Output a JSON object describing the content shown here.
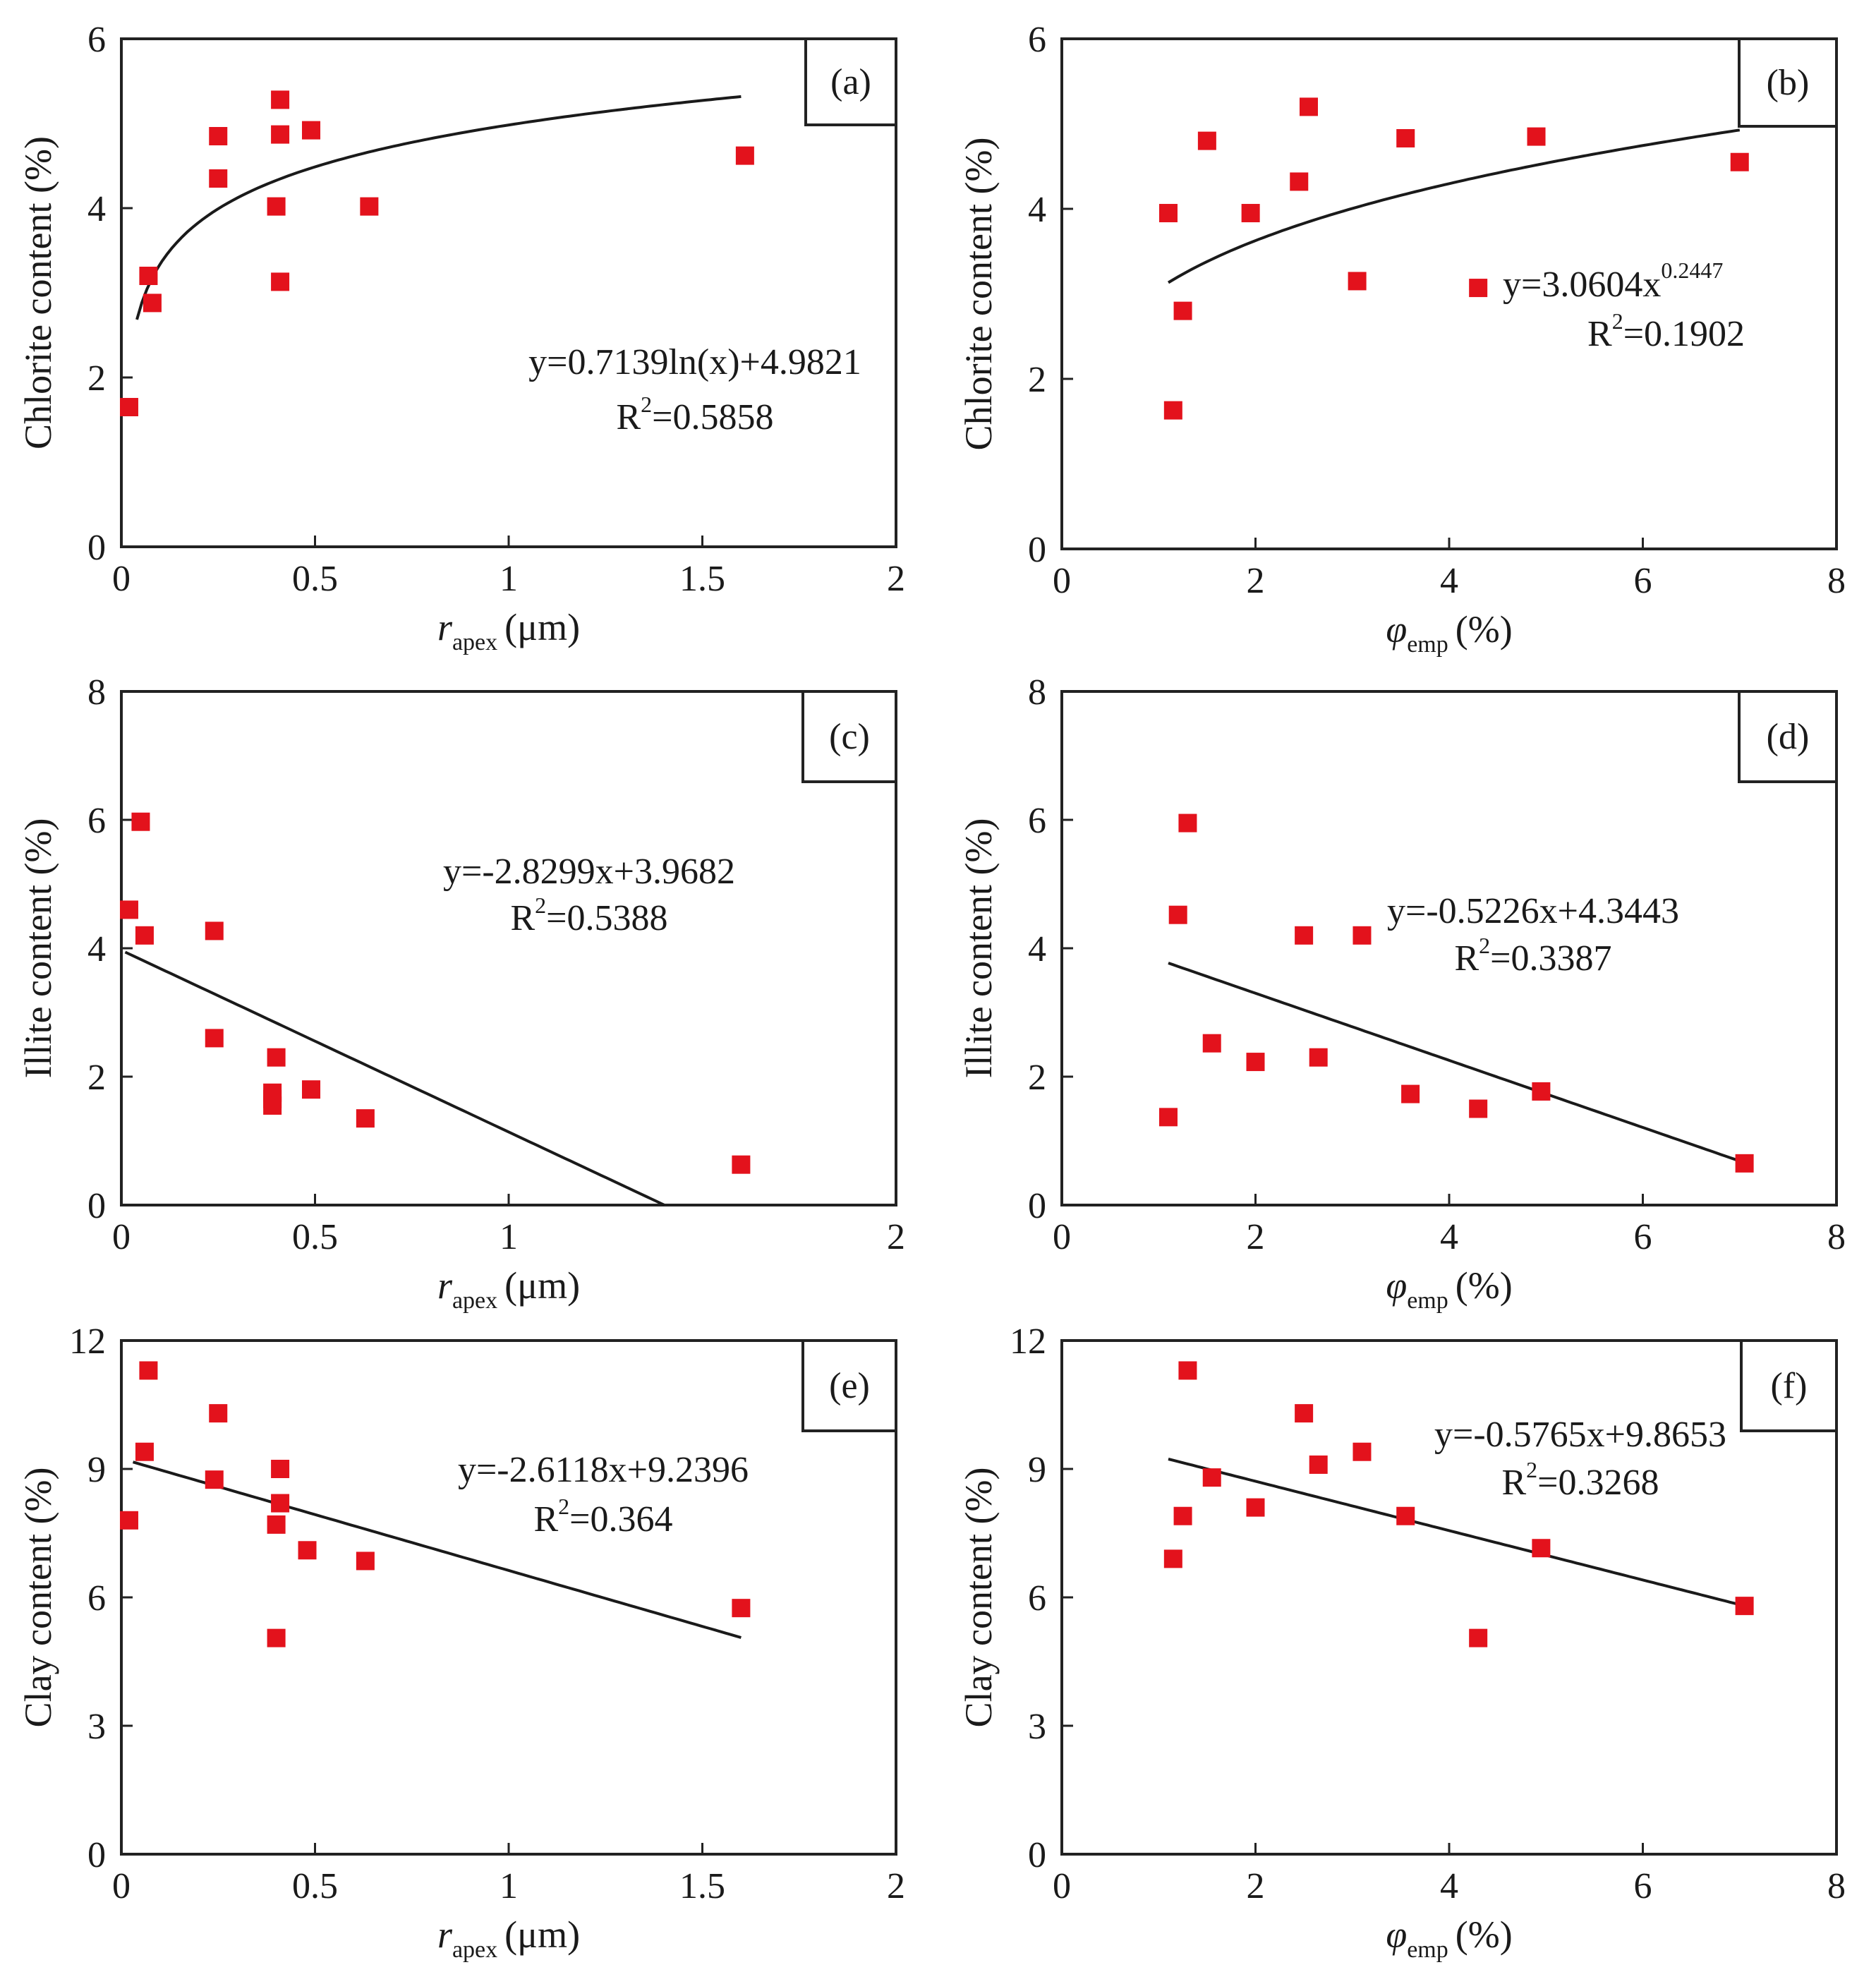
{
  "chart_data": [
    {
      "panel": "a",
      "type": "scatter",
      "panel_label": "(a)",
      "xlim": [
        0,
        2
      ],
      "ylim": [
        0,
        6
      ],
      "xticks": [
        "0",
        "0.5",
        "1",
        "1.5",
        "2"
      ],
      "yticks": [
        "0",
        "2",
        "4",
        "6"
      ],
      "xlabel": {
        "main": "r",
        "sub": "apex",
        "unit": "(μm)"
      },
      "ylabel": "Chlorite content (%)",
      "points": {
        "x": [
          0.02,
          0.07,
          0.08,
          0.25,
          0.25,
          0.4,
          0.41,
          0.41,
          0.41,
          0.49,
          0.64,
          1.61
        ],
        "y": [
          1.65,
          3.2,
          2.88,
          4.85,
          4.35,
          4.02,
          3.13,
          5.28,
          4.87,
          4.92,
          4.02,
          4.62
        ]
      },
      "trend": {
        "kind": "log",
        "a": 0.7139,
        "b": 4.9821,
        "xrange": [
          0.04,
          1.6
        ]
      },
      "equation": "y=0.7139ln(x)+4.9821",
      "r2_label": "R",
      "r2_sup": "2",
      "r2_value": "=0.5858"
    },
    {
      "panel": "b",
      "type": "scatter",
      "panel_label": "(b)",
      "xlim": [
        0,
        8
      ],
      "ylim": [
        0,
        6
      ],
      "xticks": [
        "0",
        "2",
        "4",
        "6",
        "8"
      ],
      "yticks": [
        "0",
        "2",
        "4",
        "6"
      ],
      "xlabel": {
        "main": "φ",
        "sub": "emp",
        "unit": "(%)"
      },
      "ylabel": "Chlorite content (%)",
      "points": {
        "x": [
          1.1,
          1.15,
          1.25,
          1.5,
          1.95,
          2.45,
          2.55,
          3.05,
          3.55,
          4.3,
          4.9,
          7.0
        ],
        "y": [
          3.95,
          1.63,
          2.8,
          4.8,
          3.95,
          4.32,
          5.2,
          3.15,
          4.83,
          3.07,
          4.85,
          4.55
        ]
      },
      "trend": {
        "kind": "power",
        "a": 3.0604,
        "b": 0.2447,
        "xrange": [
          1.1,
          7.0
        ]
      },
      "equation": "y=3.0604x",
      "equation_sup": "0.2447",
      "r2_label": "R",
      "r2_sup": "2",
      "r2_value": "=0.1902"
    },
    {
      "panel": "c",
      "type": "scatter",
      "panel_label": "(c)",
      "xlim": [
        0,
        2
      ],
      "ylim": [
        0,
        8
      ],
      "xticks": [
        "0",
        "0.5",
        "1",
        "2"
      ],
      "xtick_values": [
        0,
        0.5,
        1,
        2
      ],
      "yticks": [
        "0",
        "2",
        "4",
        "6",
        "8"
      ],
      "xlabel": {
        "main": "r",
        "sub": "apex",
        "unit": "(μm)"
      },
      "ylabel": "Illite content (%)",
      "points": {
        "x": [
          0.02,
          0.05,
          0.06,
          0.24,
          0.24,
          0.39,
          0.39,
          0.39,
          0.4,
          0.49,
          0.63,
          1.6
        ],
        "y": [
          4.6,
          5.97,
          4.2,
          4.27,
          2.6,
          1.75,
          1.55,
          1.65,
          2.3,
          1.8,
          1.35,
          0.63
        ]
      },
      "trend": {
        "kind": "linear",
        "a": -2.8299,
        "b": 3.9682,
        "xrange": [
          0.01,
          1.4022
        ]
      },
      "equation": "y=-2.8299x+3.9682",
      "r2_label": "R",
      "r2_sup": "2",
      "r2_value": "=0.5388"
    },
    {
      "panel": "d",
      "type": "scatter",
      "panel_label": "(d)",
      "xlim": [
        0,
        8
      ],
      "ylim": [
        0,
        8
      ],
      "xticks": [
        "0",
        "2",
        "4",
        "6",
        "8"
      ],
      "yticks": [
        "0",
        "2",
        "4",
        "6",
        "8"
      ],
      "xlabel": {
        "main": "φ",
        "sub": "emp",
        "unit": "(%)"
      },
      "ylabel": "Illite content (%)",
      "points": {
        "x": [
          1.1,
          1.2,
          1.3,
          1.55,
          2.0,
          2.5,
          2.65,
          3.1,
          3.6,
          4.3,
          4.95,
          7.05
        ],
        "y": [
          1.37,
          4.52,
          5.95,
          2.52,
          2.23,
          4.2,
          2.3,
          4.2,
          1.73,
          1.5,
          1.77,
          0.65
        ]
      },
      "trend": {
        "kind": "linear",
        "a": -0.5226,
        "b": 4.3443,
        "xrange": [
          1.1,
          7.05
        ]
      },
      "equation": "y=-0.5226x+4.3443",
      "r2_label": "R",
      "r2_sup": "2",
      "r2_value": "=0.3387"
    },
    {
      "panel": "e",
      "type": "scatter",
      "panel_label": "(e)",
      "xlim": [
        0,
        2
      ],
      "ylim": [
        0,
        12
      ],
      "xticks": [
        "0",
        "0.5",
        "1",
        "1.5",
        "2"
      ],
      "yticks": [
        "0",
        "3",
        "6",
        "9",
        "12"
      ],
      "xlabel": {
        "main": "r",
        "sub": "apex",
        "unit": "(μm)"
      },
      "ylabel": "Clay content (%)",
      "points": {
        "x": [
          0.02,
          0.06,
          0.07,
          0.24,
          0.25,
          0.4,
          0.4,
          0.41,
          0.41,
          0.48,
          0.63,
          1.6
        ],
        "y": [
          7.8,
          9.4,
          11.3,
          8.75,
          10.3,
          5.05,
          7.7,
          8.2,
          9.0,
          7.1,
          6.85,
          5.75
        ]
      },
      "trend": {
        "kind": "linear",
        "a": -2.6118,
        "b": 9.2396,
        "xrange": [
          0.03,
          1.6
        ]
      },
      "equation": "y=-2.6118x+9.2396",
      "r2_label": "R",
      "r2_sup": "2",
      "r2_value": "=0.364"
    },
    {
      "panel": "f",
      "type": "scatter",
      "panel_label": "(f)",
      "xlim": [
        0,
        8
      ],
      "ylim": [
        0,
        12
      ],
      "xticks": [
        "0",
        "2",
        "4",
        "6",
        "8"
      ],
      "yticks": [
        "0",
        "3",
        "6",
        "9",
        "12"
      ],
      "xlabel": {
        "main": "φ",
        "sub": "emp",
        "unit": "(%)"
      },
      "ylabel": "Clay content (%)",
      "points": {
        "x": [
          1.15,
          1.25,
          1.3,
          1.55,
          2.0,
          2.5,
          2.65,
          3.1,
          3.55,
          4.3,
          4.95,
          7.05
        ],
        "y": [
          6.9,
          7.9,
          11.3,
          8.8,
          8.1,
          10.3,
          9.1,
          9.4,
          7.9,
          5.05,
          7.15,
          5.8
        ]
      },
      "trend": {
        "kind": "linear",
        "a": -0.5765,
        "b": 9.8653,
        "xrange": [
          1.1,
          7.05
        ]
      },
      "equation": "y=-0.5765x+9.8653",
      "r2_label": "R",
      "r2_sup": "2",
      "r2_value": "=0.3268"
    }
  ]
}
